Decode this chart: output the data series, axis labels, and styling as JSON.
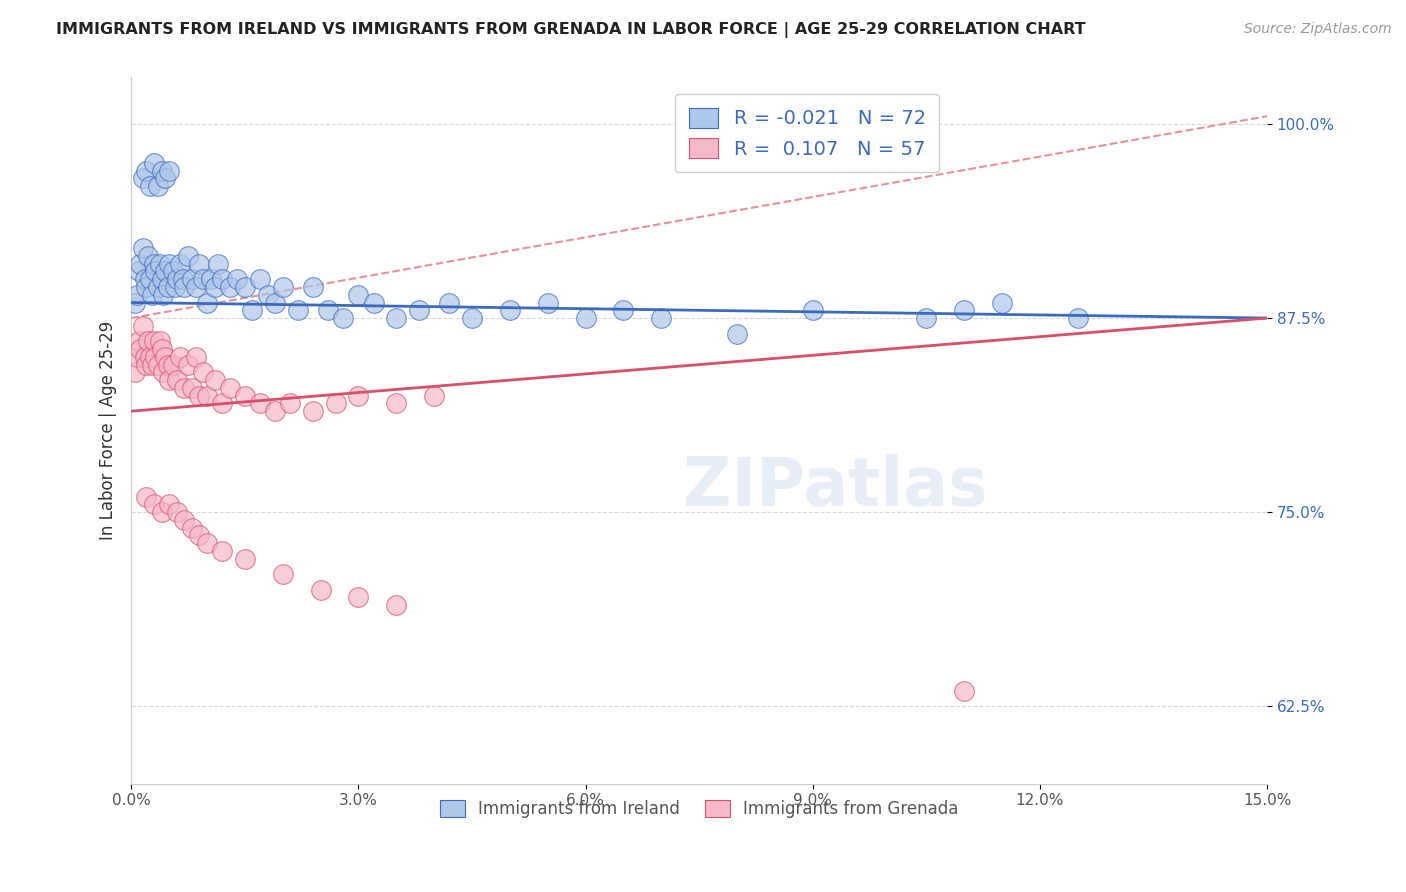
{
  "title": "IMMIGRANTS FROM IRELAND VS IMMIGRANTS FROM GRENADA IN LABOR FORCE | AGE 25-29 CORRELATION CHART",
  "source": "Source: ZipAtlas.com",
  "ylabel": "In Labor Force | Age 25-29",
  "xlim": [
    0.0,
    15.0
  ],
  "ylim": [
    57.5,
    103.0
  ],
  "yticks": [
    62.5,
    75.0,
    87.5,
    100.0
  ],
  "ytick_labels": [
    "62.5%",
    "75.0%",
    "87.5%",
    "100.0%"
  ],
  "xticks": [
    0.0,
    3.0,
    6.0,
    9.0,
    12.0,
    15.0
  ],
  "xtick_labels": [
    "0.0%",
    "3.0%",
    "6.0%",
    "9.0%",
    "12.0%",
    "15.0%"
  ],
  "ireland_R": -0.021,
  "ireland_N": 72,
  "grenada_R": 0.107,
  "grenada_N": 57,
  "ireland_color": "#aec6e8",
  "grenada_color": "#f5b8c8",
  "ireland_line_color": "#3a6bbf",
  "grenada_line_color": "#d94f6a",
  "dashed_line_color": "#e8909a",
  "grid_color": "#d8d8d8",
  "background_color": "#ffffff",
  "ireland_x": [
    0.05,
    0.08,
    0.1,
    0.12,
    0.15,
    0.18,
    0.2,
    0.22,
    0.25,
    0.28,
    0.3,
    0.32,
    0.35,
    0.38,
    0.4,
    0.42,
    0.45,
    0.48,
    0.5,
    0.55,
    0.58,
    0.6,
    0.65,
    0.68,
    0.7,
    0.75,
    0.8,
    0.85,
    0.9,
    0.95,
    1.0,
    1.05,
    1.1,
    1.15,
    1.2,
    1.3,
    1.4,
    1.5,
    1.6,
    1.7,
    1.8,
    1.9,
    2.0,
    2.2,
    2.4,
    2.6,
    2.8,
    3.0,
    3.2,
    3.5,
    3.8,
    4.2,
    4.5,
    5.0,
    5.5,
    6.0,
    6.5,
    7.0,
    8.0,
    9.0,
    10.5,
    11.0,
    11.5,
    12.5,
    0.15,
    0.2,
    0.25,
    0.3,
    0.35,
    0.4,
    0.45,
    0.5
  ],
  "ireland_y": [
    88.5,
    89.0,
    90.5,
    91.0,
    92.0,
    90.0,
    89.5,
    91.5,
    90.0,
    89.0,
    91.0,
    90.5,
    89.5,
    91.0,
    90.0,
    89.0,
    90.5,
    89.5,
    91.0,
    90.5,
    89.5,
    90.0,
    91.0,
    90.0,
    89.5,
    91.5,
    90.0,
    89.5,
    91.0,
    90.0,
    88.5,
    90.0,
    89.5,
    91.0,
    90.0,
    89.5,
    90.0,
    89.5,
    88.0,
    90.0,
    89.0,
    88.5,
    89.5,
    88.0,
    89.5,
    88.0,
    87.5,
    89.0,
    88.5,
    87.5,
    88.0,
    88.5,
    87.5,
    88.0,
    88.5,
    87.5,
    88.0,
    87.5,
    86.5,
    88.0,
    87.5,
    88.0,
    88.5,
    87.5,
    96.5,
    97.0,
    96.0,
    97.5,
    96.0,
    97.0,
    96.5,
    97.0
  ],
  "grenada_x": [
    0.05,
    0.08,
    0.1,
    0.12,
    0.15,
    0.18,
    0.2,
    0.22,
    0.25,
    0.28,
    0.3,
    0.32,
    0.35,
    0.38,
    0.4,
    0.42,
    0.45,
    0.48,
    0.5,
    0.55,
    0.6,
    0.65,
    0.7,
    0.75,
    0.8,
    0.85,
    0.9,
    0.95,
    1.0,
    1.1,
    1.2,
    1.3,
    1.5,
    1.7,
    1.9,
    2.1,
    2.4,
    2.7,
    3.0,
    3.5,
    4.0,
    0.2,
    0.3,
    0.4,
    0.5,
    0.6,
    0.7,
    0.8,
    0.9,
    1.0,
    1.2,
    1.5,
    2.0,
    2.5,
    3.0,
    3.5,
    11.0
  ],
  "grenada_y": [
    84.0,
    85.0,
    86.0,
    85.5,
    87.0,
    85.0,
    84.5,
    86.0,
    85.0,
    84.5,
    86.0,
    85.0,
    84.5,
    86.0,
    85.5,
    84.0,
    85.0,
    84.5,
    83.5,
    84.5,
    83.5,
    85.0,
    83.0,
    84.5,
    83.0,
    85.0,
    82.5,
    84.0,
    82.5,
    83.5,
    82.0,
    83.0,
    82.5,
    82.0,
    81.5,
    82.0,
    81.5,
    82.0,
    82.5,
    82.0,
    82.5,
    76.0,
    75.5,
    75.0,
    75.5,
    75.0,
    74.5,
    74.0,
    73.5,
    73.0,
    72.5,
    72.0,
    71.0,
    70.0,
    69.5,
    69.0,
    63.5
  ],
  "ireland_line_y0": 88.5,
  "ireland_line_y1": 87.5,
  "grenada_line_y0": 81.5,
  "grenada_line_y1": 87.5,
  "dashed_line_y0": 87.5,
  "dashed_line_y1": 100.5
}
